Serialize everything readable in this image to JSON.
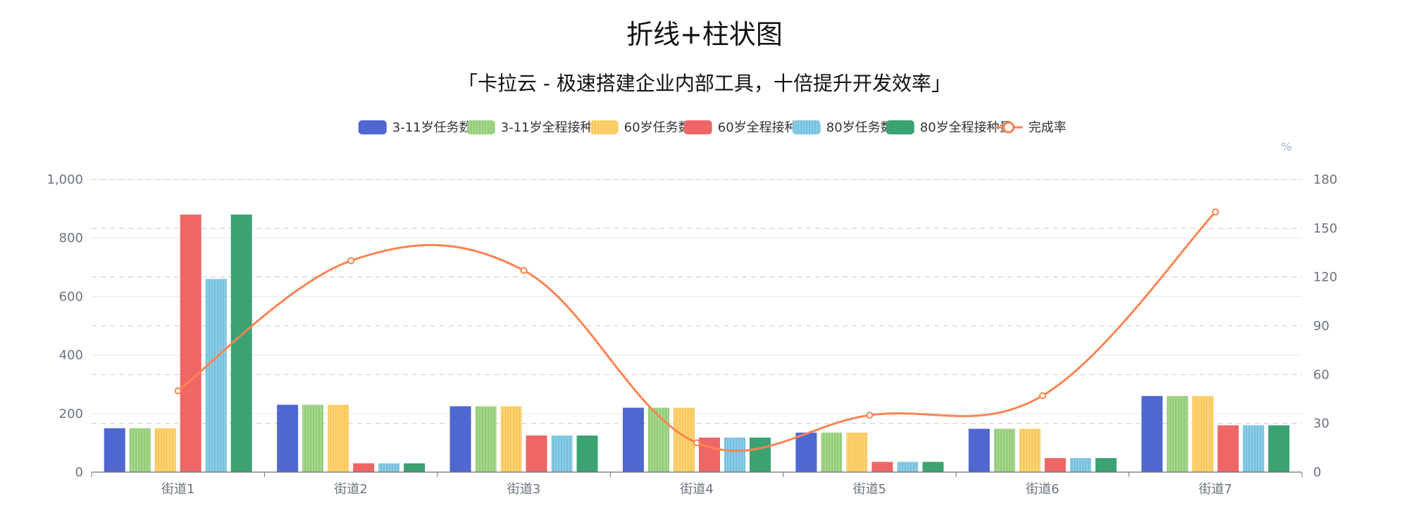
{
  "chart_data": {
    "type": "bar",
    "title": "折线+柱状图",
    "subtitle": "「卡拉云 - 极速搭建企业内部工具，十倍提升开发效率」",
    "categories": [
      "街道1",
      "街道2",
      "街道3",
      "街道4",
      "街道5",
      "街道6",
      "街道7"
    ],
    "series": [
      {
        "name": "3-11岁任务数",
        "type": "bar",
        "color": "#4F67D0",
        "pattern": "solid",
        "values": [
          150,
          230,
          225,
          220,
          135,
          148,
          260
        ]
      },
      {
        "name": "3-11岁全程接种量",
        "type": "bar",
        "color": "#91CC75",
        "pattern": "stripe",
        "values": [
          150,
          230,
          225,
          220,
          135,
          148,
          260
        ]
      },
      {
        "name": "60岁任务数",
        "type": "bar",
        "color": "#FAC858",
        "pattern": "stripe",
        "values": [
          150,
          230,
          225,
          220,
          135,
          148,
          260
        ]
      },
      {
        "name": "60岁全程接种量",
        "type": "bar",
        "color": "#EE6666",
        "pattern": "solid",
        "values": [
          880,
          30,
          125,
          118,
          35,
          48,
          160
        ]
      },
      {
        "name": "80岁任务数",
        "type": "bar",
        "color": "#73C0DE",
        "pattern": "stripe",
        "values": [
          660,
          30,
          125,
          118,
          35,
          48,
          160
        ]
      },
      {
        "name": "80岁全程接种量",
        "type": "bar",
        "color": "#3BA272",
        "pattern": "solid",
        "values": [
          880,
          30,
          125,
          118,
          35,
          48,
          160
        ]
      },
      {
        "name": "完成率",
        "type": "line",
        "axis": "right",
        "color": "#FC8452",
        "values": [
          50,
          130,
          124,
          18,
          35,
          47,
          160
        ]
      }
    ],
    "yLeft": {
      "min": 0,
      "max": 1000,
      "ticks": [
        "0",
        "200",
        "400",
        "600",
        "800",
        "1,000"
      ]
    },
    "yRight": {
      "min": 0,
      "max": 180,
      "unit": "%",
      "ticks": [
        "0",
        "30",
        "60",
        "90",
        "120",
        "150",
        "180"
      ]
    },
    "grid": true,
    "legend_position": "top-center"
  }
}
